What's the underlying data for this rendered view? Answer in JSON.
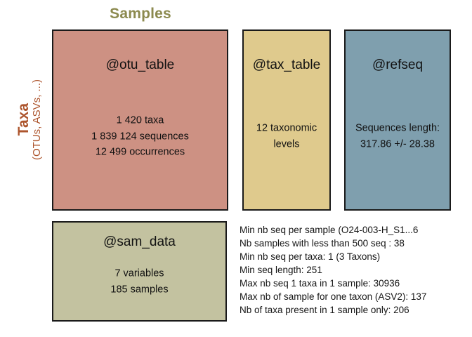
{
  "labels": {
    "samples": "Samples",
    "taxa": "Taxa",
    "taxa_sub": "(OTUs, ASVs, ...)"
  },
  "colors": {
    "samples_label": "#8C8A4F",
    "taxa_label": "#AD552D",
    "otu_fill": "#CD9183",
    "tax_fill": "#DFCA8D",
    "ref_fill": "#7F9FAE",
    "sam_fill": "#C3C2A0",
    "box_border": "#1a1a1a"
  },
  "boxes": {
    "otu_table": {
      "title": "@otu_table",
      "lines": [
        "1 420 taxa",
        "1 839 124 sequences",
        "12 499 occurrences"
      ]
    },
    "tax_table": {
      "title": "@tax_table",
      "lines": [
        "12 taxonomic",
        "levels"
      ]
    },
    "refseq": {
      "title": "@refseq",
      "lines": [
        "Sequences length:",
        "317.86 +/- 28.38"
      ]
    },
    "sam_data": {
      "title": "@sam_data",
      "lines": [
        "7 variables",
        "185 samples"
      ]
    }
  },
  "stats": {
    "lines": [
      "Min nb seq per sample (O24-003-H_S1...6",
      "Nb samples with less than 500 seq : 38",
      "Min nb seq per taxa: 1 (3 Taxons)",
      "Min seq length: 251",
      "Max nb seq 1 taxa in 1 sample: 30936",
      "Max nb of sample for one taxon (ASV2): 137",
      "Nb of taxa present in 1 sample only: 206"
    ]
  }
}
